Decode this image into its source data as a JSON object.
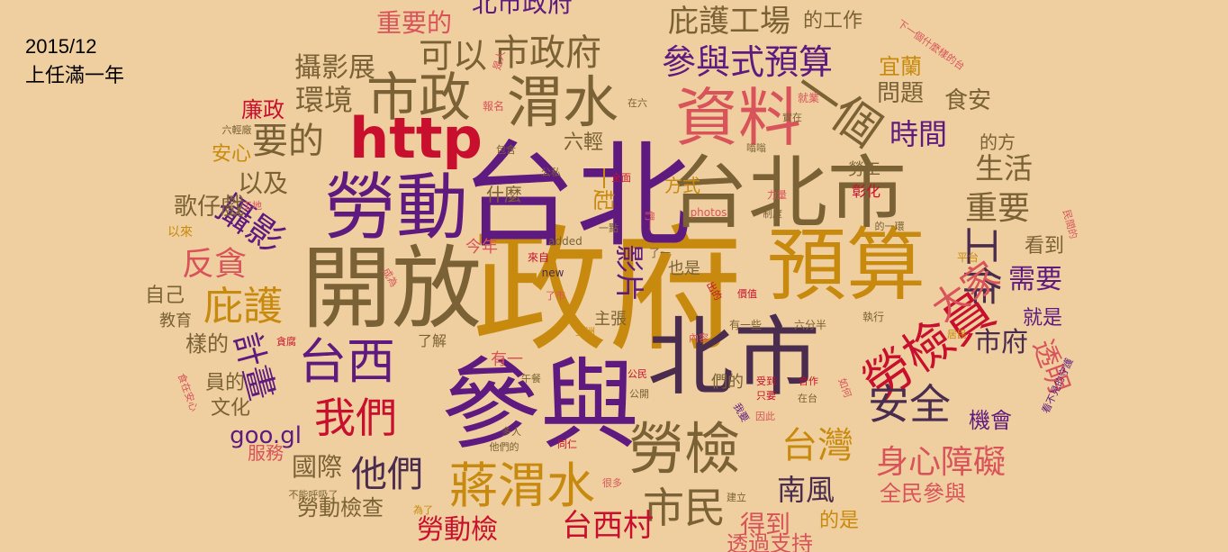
{
  "caption": {
    "date": "2015/12",
    "subtitle": "上任滿一年"
  },
  "colors": {
    "background": "#efcf9f",
    "purple": "#5e1a7f",
    "gold": "#c88a0e",
    "olive": "#7a6236",
    "red": "#c8102e",
    "pink": "#d9535b",
    "dark": "#4a2c4e"
  },
  "words": [
    {
      "text": "政府",
      "color": "gold",
      "size": 150
    },
    {
      "text": "台北",
      "color": "purple",
      "size": 128
    },
    {
      "text": "參與",
      "color": "purple",
      "size": 110
    },
    {
      "text": "開放",
      "color": "olive",
      "size": 100
    },
    {
      "text": "北市",
      "color": "dark",
      "size": 96
    },
    {
      "text": "台北市",
      "color": "olive",
      "size": 88
    },
    {
      "text": "預算",
      "color": "gold",
      "size": 88
    },
    {
      "text": "勞動",
      "color": "purple",
      "size": 80
    },
    {
      "text": "資料",
      "color": "pink",
      "size": 70
    },
    {
      "text": "http",
      "color": "red",
      "size": 62
    },
    {
      "text": "市政",
      "color": "olive",
      "size": 58
    },
    {
      "text": "渭水",
      "color": "olive",
      "size": 62
    },
    {
      "text": "一個",
      "color": "olive",
      "size": 52
    },
    {
      "text": "勞檢",
      "color": "olive",
      "size": 62
    },
    {
      "text": "勞檢員",
      "color": "red",
      "size": 54
    },
    {
      "text": "蔣渭水",
      "color": "gold",
      "size": 54
    },
    {
      "text": "台西",
      "color": "purple",
      "size": 54
    },
    {
      "text": "我們",
      "color": "red",
      "size": 46
    },
    {
      "text": "市民",
      "color": "olive",
      "size": 46
    },
    {
      "text": "安全",
      "color": "dark",
      "size": 46
    },
    {
      "text": "工作",
      "color": "dark",
      "size": 44
    },
    {
      "text": "台灣",
      "color": "gold",
      "size": 40
    },
    {
      "text": "大家",
      "color": "pink",
      "size": 40
    },
    {
      "text": "市政府",
      "color": "olive",
      "size": 40
    },
    {
      "text": "參與式預算",
      "color": "purple",
      "size": 38
    },
    {
      "text": "庇護工場",
      "color": "olive",
      "size": 34
    },
    {
      "text": "庇護",
      "color": "gold",
      "size": 44
    },
    {
      "text": "攝影",
      "color": "purple",
      "size": 40
    },
    {
      "text": "反貪",
      "color": "pink",
      "size": 36
    },
    {
      "text": "要的",
      "color": "olive",
      "size": 40
    },
    {
      "text": "身心障礙",
      "color": "pink",
      "size": 36
    },
    {
      "text": "重要",
      "color": "olive",
      "size": 36
    },
    {
      "text": "時間",
      "color": "purple",
      "size": 32
    },
    {
      "text": "生活",
      "color": "olive",
      "size": 32
    },
    {
      "text": "需要",
      "color": "purple",
      "size": 30
    },
    {
      "text": "市府",
      "color": "dark",
      "size": 30
    },
    {
      "text": "透明",
      "color": "pink",
      "size": 30
    },
    {
      "text": "他們",
      "color": "dark",
      "size": 40
    },
    {
      "text": "國際",
      "color": "olive",
      "size": 28
    },
    {
      "text": "南風",
      "color": "dark",
      "size": 32
    },
    {
      "text": "台西村",
      "color": "red",
      "size": 34
    },
    {
      "text": "勞動檢",
      "color": "red",
      "size": 30
    },
    {
      "text": "得到",
      "color": "pink",
      "size": 28
    },
    {
      "text": "全民參與",
      "color": "pink",
      "size": 24
    },
    {
      "text": "機會",
      "color": "purple",
      "size": 24
    },
    {
      "text": "可以",
      "color": "olive",
      "size": 38
    },
    {
      "text": "攝影展",
      "color": "olive",
      "size": 30
    },
    {
      "text": "環境",
      "color": "olive",
      "size": 32
    },
    {
      "text": "以及",
      "color": "olive",
      "size": 28
    },
    {
      "text": "歌仔戲",
      "color": "olive",
      "size": 26
    },
    {
      "text": "重要的",
      "color": "pink",
      "size": 28
    },
    {
      "text": "北市政府",
      "color": "purple",
      "size": 28
    },
    {
      "text": "問題",
      "color": "olive",
      "size": 26
    },
    {
      "text": "食安",
      "color": "olive",
      "size": 26
    },
    {
      "text": "宜蘭",
      "color": "gold",
      "size": 24
    },
    {
      "text": "廉政",
      "color": "red",
      "size": 24
    },
    {
      "text": "安心",
      "color": "gold",
      "size": 22
    },
    {
      "text": "goo.gl",
      "color": "purple",
      "size": 26
    },
    {
      "text": "勞動檢查",
      "color": "olive",
      "size": 24
    },
    {
      "text": "自己",
      "color": "olive",
      "size": 22
    },
    {
      "text": "樣的",
      "color": "olive",
      "size": 24
    },
    {
      "text": "員的",
      "color": "olive",
      "size": 22
    },
    {
      "text": "文化",
      "color": "olive",
      "size": 22
    },
    {
      "text": "服務",
      "color": "pink",
      "size": 20
    },
    {
      "text": "教育",
      "color": "olive",
      "size": 18
    },
    {
      "text": "六輕",
      "color": "olive",
      "size": 22
    },
    {
      "text": "一起",
      "color": "gold",
      "size": 24
    },
    {
      "text": "影片",
      "color": "purple",
      "size": 32
    },
    {
      "text": "計畫",
      "color": "purple",
      "size": 38
    },
    {
      "text": "的工作",
      "color": "olive",
      "size": 22
    },
    {
      "text": "的方",
      "color": "olive",
      "size": 20
    },
    {
      "text": "勞工",
      "color": "olive",
      "size": 18
    },
    {
      "text": "方式",
      "color": "gold",
      "size": 20
    },
    {
      "text": "什麼",
      "color": "olive",
      "size": 20
    },
    {
      "text": "看到",
      "color": "olive",
      "size": 22
    },
    {
      "text": "就是",
      "color": "purple",
      "size": 22
    },
    {
      "text": "的是",
      "color": "gold",
      "size": 22
    },
    {
      "text": "透過支持",
      "color": "pink",
      "size": 24
    },
    {
      "text": "今年",
      "color": "pink",
      "size": 18
    },
    {
      "text": "也是",
      "color": "olive",
      "size": 18
    },
    {
      "text": "主張",
      "color": "olive",
      "size": 18
    },
    {
      "text": "了解",
      "color": "olive",
      "size": 16
    },
    {
      "text": "有一",
      "color": "pink",
      "size": 18
    },
    {
      "text": "們的",
      "color": "olive",
      "size": 18
    },
    {
      "text": "彰化",
      "color": "red",
      "size": 16
    },
    {
      "text": "平台",
      "color": "gold",
      "size": 12
    },
    {
      "text": "以來",
      "color": "gold",
      "size": 14
    },
    {
      "text": "下一個什麼樣的台",
      "color": "pink",
      "size": 11
    },
    {
      "text": "民間的",
      "color": "pink",
      "size": 11
    },
    {
      "text": "看不見的守護",
      "color": "purple",
      "size": 11
    },
    {
      "text": "是人",
      "color": "pink",
      "size": 11
    },
    {
      "text": "報名",
      "color": "pink",
      "size": 12
    },
    {
      "text": "在六",
      "color": "olive",
      "size": 11
    },
    {
      "text": "就業",
      "color": "pink",
      "size": 12
    },
    {
      "text": "實在",
      "color": "olive",
      "size": 11
    },
    {
      "text": "六輕廠",
      "color": "olive",
      "size": 11
    },
    {
      "text": "包含",
      "color": "olive",
      "size": 11
    },
    {
      "text": "公私",
      "color": "olive",
      "size": 11
    },
    {
      "text": "全面",
      "color": "red",
      "size": 11
    },
    {
      "text": "嗡嗡",
      "color": "olive",
      "size": 11
    },
    {
      "text": "力量",
      "color": "pink",
      "size": 11
    },
    {
      "text": "制度",
      "color": "olive",
      "size": 11
    },
    {
      "text": "們一",
      "color": "pink",
      "size": 11
    },
    {
      "text": "photos",
      "color": "pink",
      "size": 12
    },
    {
      "text": "的一環",
      "color": "olive",
      "size": 11
    },
    {
      "text": "工地",
      "color": "pink",
      "size": 11
    },
    {
      "text": "一點",
      "color": "olive",
      "size": 11
    },
    {
      "text": "added",
      "color": "olive",
      "size": 12
    },
    {
      "text": "來自",
      "color": "red",
      "size": 12
    },
    {
      "text": "了一",
      "color": "olive",
      "size": 12
    },
    {
      "text": "new",
      "color": "dark",
      "size": 12
    },
    {
      "text": "成為",
      "color": "pink",
      "size": 11
    },
    {
      "text": "了市",
      "color": "pink",
      "size": 11
    },
    {
      "text": "出的",
      "color": "red",
      "size": 11
    },
    {
      "text": "價值",
      "color": "red",
      "size": 11
    },
    {
      "text": "有一些",
      "color": "olive",
      "size": 12
    },
    {
      "text": "六分半",
      "color": "olive",
      "size": 12
    },
    {
      "text": "執行",
      "color": "olive",
      "size": 12
    },
    {
      "text": "亞洲",
      "color": "gold",
      "size": 11
    },
    {
      "text": "內容",
      "color": "pink",
      "size": 11
    },
    {
      "text": "居民",
      "color": "gold",
      "size": 11
    },
    {
      "text": "貪腐",
      "color": "red",
      "size": 11
    },
    {
      "text": "食在安心",
      "color": "pink",
      "size": 11
    },
    {
      "text": "午餐",
      "color": "olive",
      "size": 11
    },
    {
      "text": "公民",
      "color": "red",
      "size": 11
    },
    {
      "text": "公開",
      "color": "olive",
      "size": 11
    },
    {
      "text": "受到",
      "color": "red",
      "size": 11
    },
    {
      "text": "只要",
      "color": "red",
      "size": 11
    },
    {
      "text": "合作",
      "color": "red",
      "size": 11
    },
    {
      "text": "在台",
      "color": "olive",
      "size": 11
    },
    {
      "text": "如何",
      "color": "pink",
      "size": 11
    },
    {
      "text": "我要",
      "color": "purple",
      "size": 11
    },
    {
      "text": "因此",
      "color": "pink",
      "size": 11
    },
    {
      "text": "多人",
      "color": "olive",
      "size": 11
    },
    {
      "text": "同仁",
      "color": "red",
      "size": 11
    },
    {
      "text": "他們的",
      "color": "olive",
      "size": 11
    },
    {
      "text": "不能呼吸了",
      "color": "olive",
      "size": 11
    },
    {
      "text": "為了",
      "color": "gold",
      "size": 11
    },
    {
      "text": "很多",
      "color": "pink",
      "size": 11
    },
    {
      "text": "建立",
      "color": "olive",
      "size": 11
    }
  ]
}
